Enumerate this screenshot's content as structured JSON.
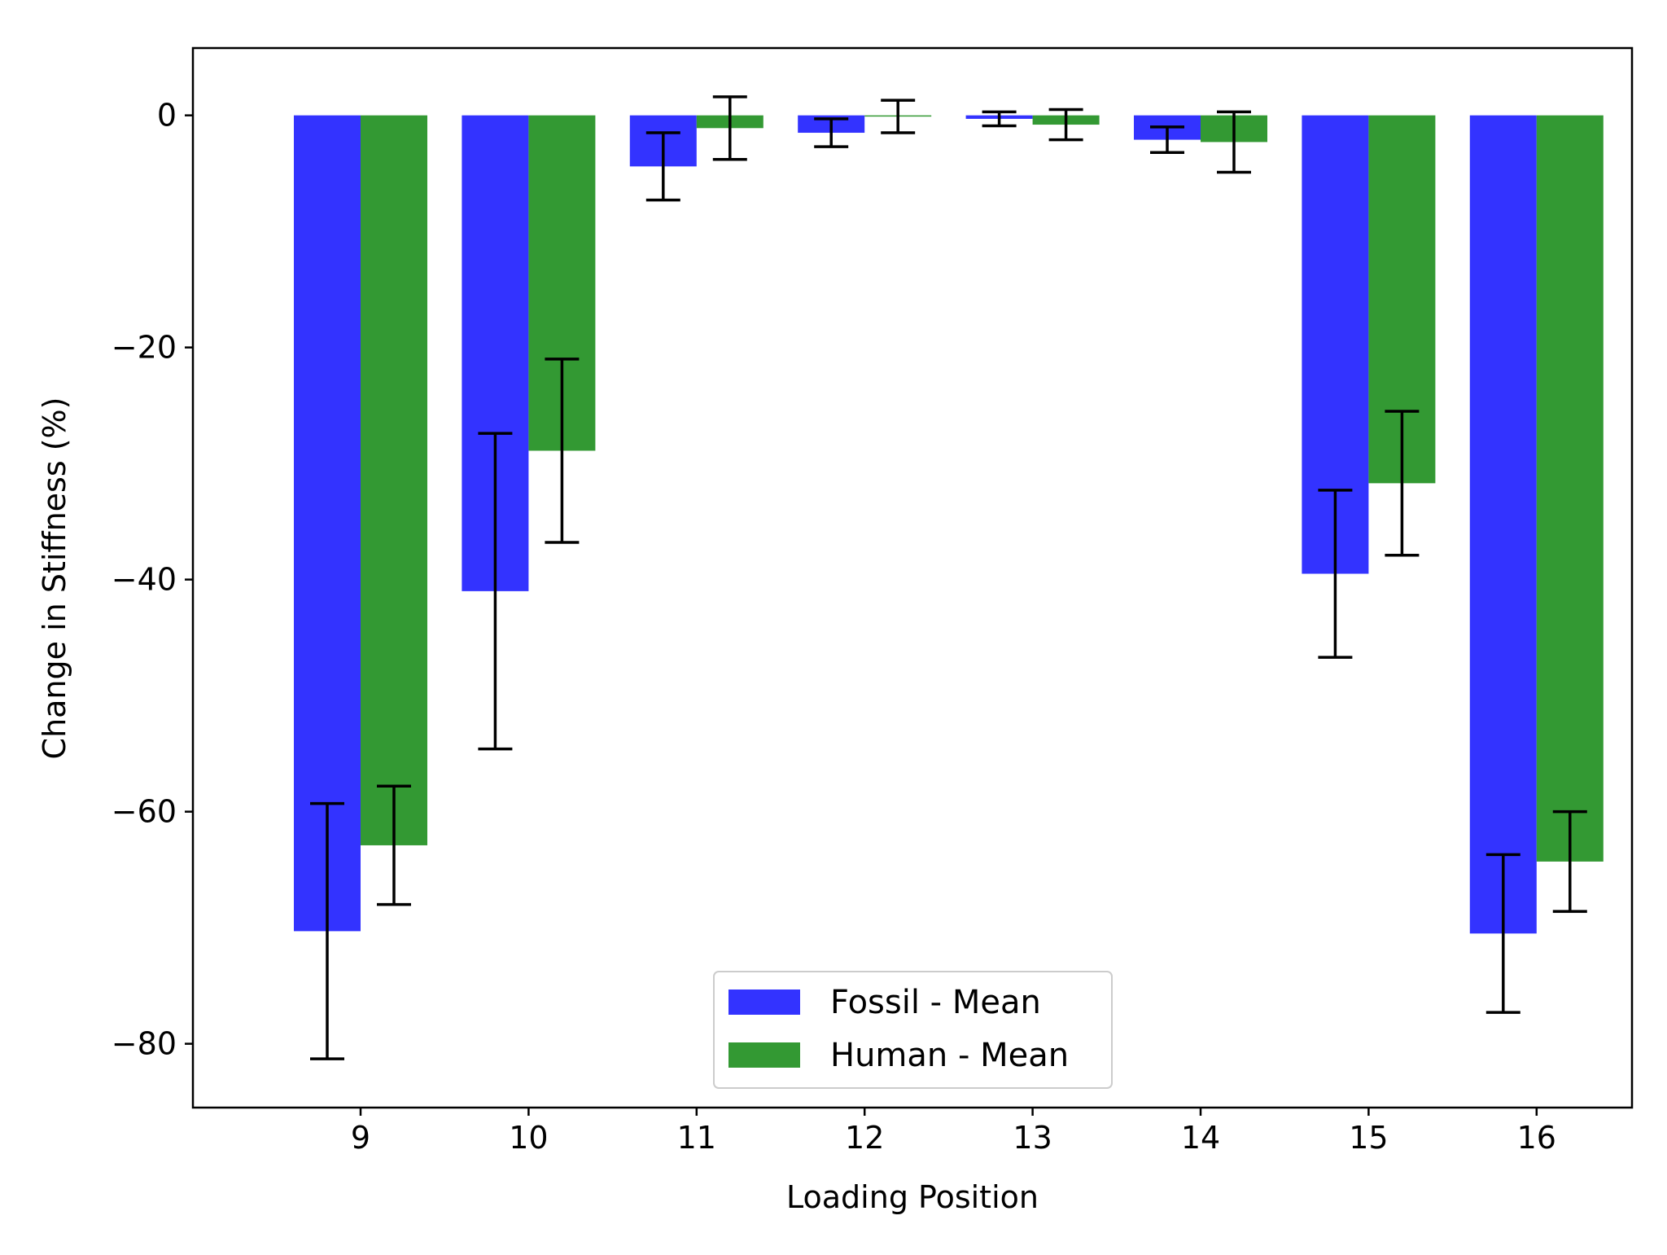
{
  "chart_data": {
    "type": "bar",
    "title": "",
    "xlabel": "Loading Position",
    "ylabel": "Change in Stiffness (%)",
    "categories": [
      "9",
      "10",
      "11",
      "12",
      "13",
      "14",
      "15",
      "16"
    ],
    "ylim": [
      -85.5,
      5.8
    ],
    "yticks": [
      0,
      -20,
      -40,
      -60,
      -80
    ],
    "yticklabels": [
      "0",
      "−20",
      "−40",
      "−60",
      "−80"
    ],
    "grid": false,
    "legend_position": "bottom-center",
    "series": [
      {
        "name": "Fossil - Mean",
        "color": "#3333ff",
        "values": [
          -70.3,
          -41.0,
          -4.4,
          -1.5,
          -0.3,
          -2.1,
          -39.5,
          -70.5
        ],
        "error": [
          11.0,
          13.6,
          2.9,
          1.2,
          0.6,
          1.1,
          7.2,
          6.8
        ]
      },
      {
        "name": "Human - Mean",
        "color": "#339933",
        "values": [
          -62.9,
          -28.9,
          -1.1,
          -0.1,
          -0.8,
          -2.3,
          -31.7,
          -64.3
        ],
        "error": [
          5.1,
          7.9,
          2.7,
          1.4,
          1.3,
          2.6,
          6.2,
          4.3
        ]
      }
    ]
  }
}
